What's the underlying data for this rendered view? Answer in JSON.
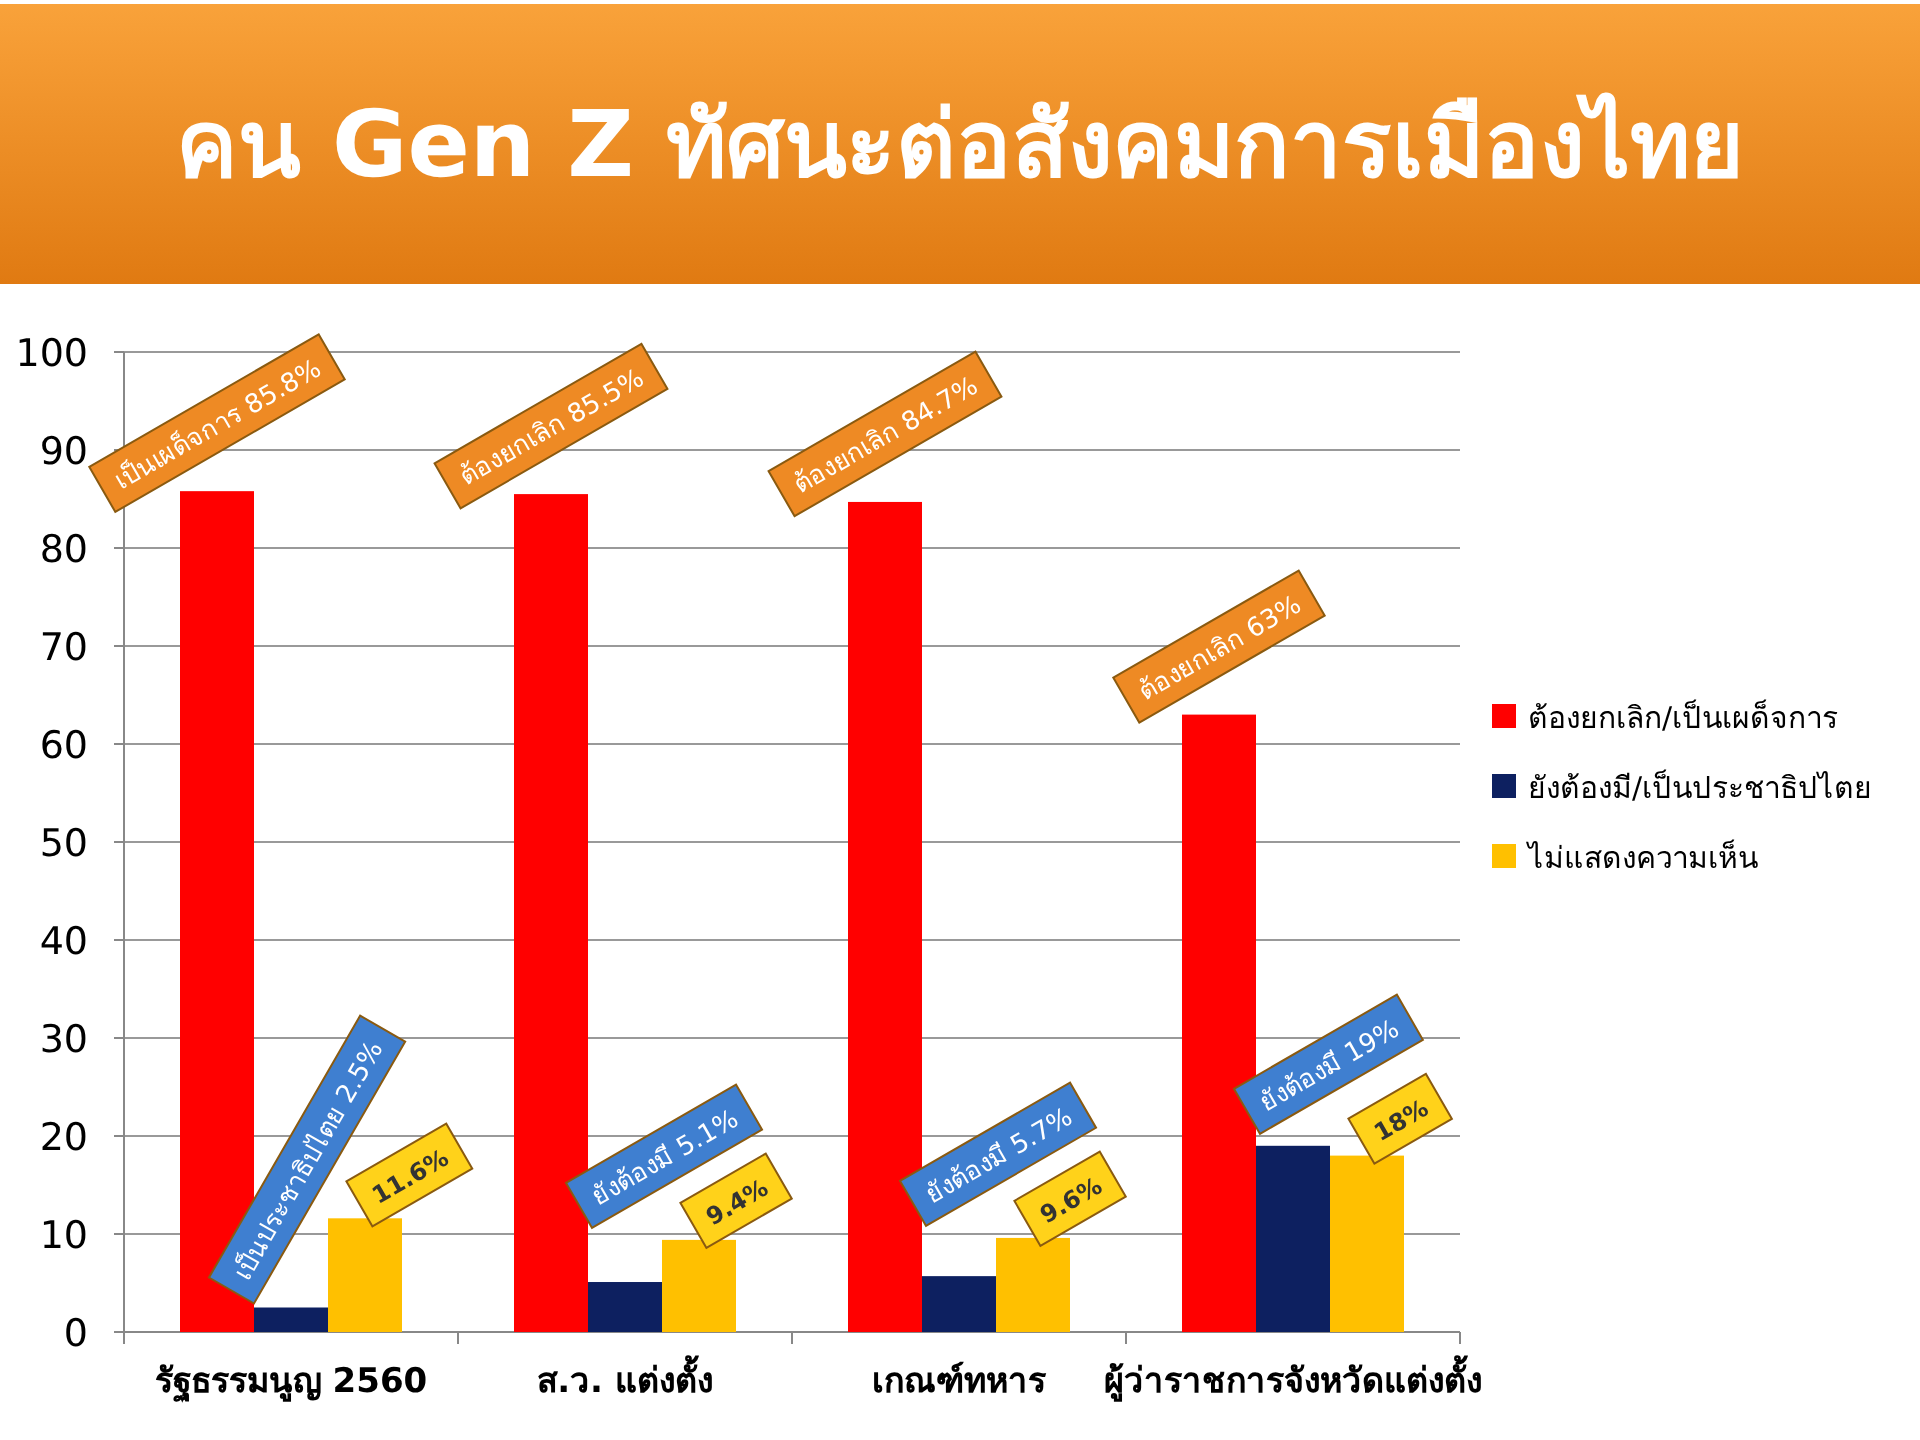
{
  "chart_data": {
    "type": "bar",
    "title": "คน Gen Z ทัศนะต่อสังคมการเมืองไทย",
    "categories": [
      "รัฐธรรมนูญ 2560",
      "ส.ว. แต่งตั้ง",
      "เกณฑ์ทหาร",
      "ผู้ว่าราชการจังหวัดแต่งตั้ง"
    ],
    "series": [
      {
        "name": "ต้องยกเลิก/เป็นเผด็จการ",
        "color": "#ff0000",
        "values": [
          85.8,
          85.5,
          84.7,
          63
        ],
        "value_labels": [
          "เป็นเผด็จการ 85.8%",
          "ต้องยกเลิก 85.5%",
          "ต้องยกเลิก 84.7%",
          "ต้องยกเลิก 63%"
        ]
      },
      {
        "name": "ยังต้องมี/เป็นประชาธิปไตย",
        "color": "#0d2060",
        "values": [
          2.5,
          5.1,
          5.7,
          19
        ],
        "value_labels": [
          "เป็นประชาธิปไตย 2.5%",
          "ยังต้องมี 5.1%",
          "ยังต้องมี 5.7%",
          "ยังต้องมี 19%"
        ]
      },
      {
        "name": "ไม่แสดงความเห็น",
        "color": "#ffc000",
        "values": [
          11.6,
          9.4,
          9.6,
          18
        ],
        "value_labels": [
          "11.6%",
          "9.4%",
          "9.6%",
          "18%"
        ]
      }
    ],
    "ylim": [
      0,
      100
    ],
    "yticks": [
      0,
      10,
      20,
      30,
      40,
      50,
      60,
      70,
      80,
      90,
      100
    ],
    "grid": "y",
    "legend": "right"
  }
}
